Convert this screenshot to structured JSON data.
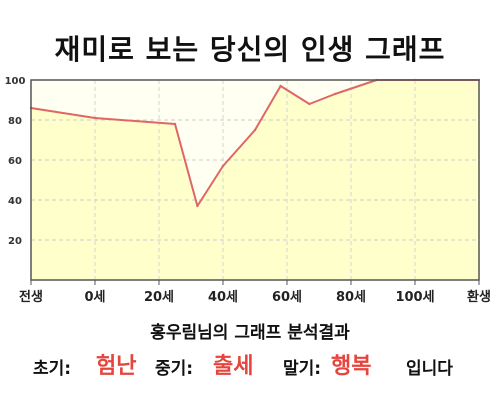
{
  "title": "재미로 보는 당신의 인생 그래프",
  "analysis": {
    "heading": "홍우림님의 그래프 분석결과",
    "early_label": "초기:",
    "early_value": "험난",
    "mid_label": "중기:",
    "mid_value": "출세",
    "late_label": "말기:",
    "late_value": "행복",
    "ending": "입니다"
  },
  "colors": {
    "line": "#e06666",
    "fill": "#ffffcc",
    "plot_bg": "#fffff2",
    "accent_text": "#e6453e"
  },
  "chart_data": {
    "type": "area",
    "title": "재미로 보는 당신의 인생 그래프",
    "x_tick_labels": [
      "전생",
      "0세",
      "20세",
      "40세",
      "60세",
      "80세",
      "100세",
      "환생"
    ],
    "y_tick_labels": [
      "20",
      "40",
      "60",
      "80",
      "100"
    ],
    "ylim": [
      0,
      100
    ],
    "grid": true,
    "series": [
      {
        "x": [
          -20,
          0,
          25,
          32,
          40,
          50,
          58,
          67,
          75,
          88,
          100,
          120
        ],
        "values": [
          86,
          81,
          78,
          37,
          57,
          75,
          97,
          88,
          93,
          100,
          100,
          100
        ]
      }
    ]
  }
}
